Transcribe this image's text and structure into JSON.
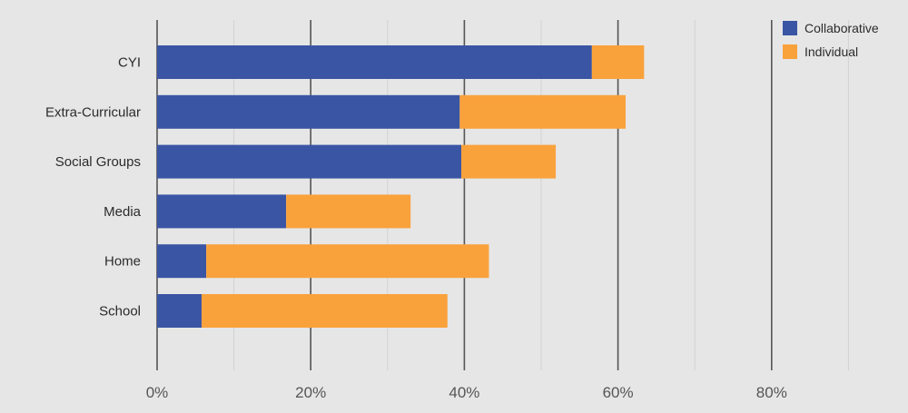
{
  "chart_data": {
    "type": "bar",
    "orientation": "horizontal",
    "stacked": true,
    "categories": [
      "CYI",
      "Extra-Curricular",
      "Social Groups",
      "Media",
      "Home",
      "School"
    ],
    "series": [
      {
        "name": "Collaborative",
        "color": "#3a55a4",
        "values": [
          56.6,
          39.4,
          39.6,
          16.8,
          6.4,
          5.8
        ]
      },
      {
        "name": "Individual",
        "color": "#f9a23c",
        "values": [
          6.8,
          21.6,
          12.3,
          16.2,
          36.8,
          32.0
        ]
      }
    ],
    "x_ticks": [
      "0%",
      "20%",
      "40%",
      "60%",
      "80%"
    ],
    "x_tick_values": [
      0,
      20,
      40,
      60,
      80
    ],
    "xlim": [
      0,
      98
    ],
    "xlabel": "",
    "ylabel": "",
    "title": "",
    "grid": "vertical",
    "legend_position": "top-right",
    "colors": {
      "background": "#e6e6e6",
      "major_grid": "#555555",
      "minor_grid": "#d2d2d2"
    }
  }
}
